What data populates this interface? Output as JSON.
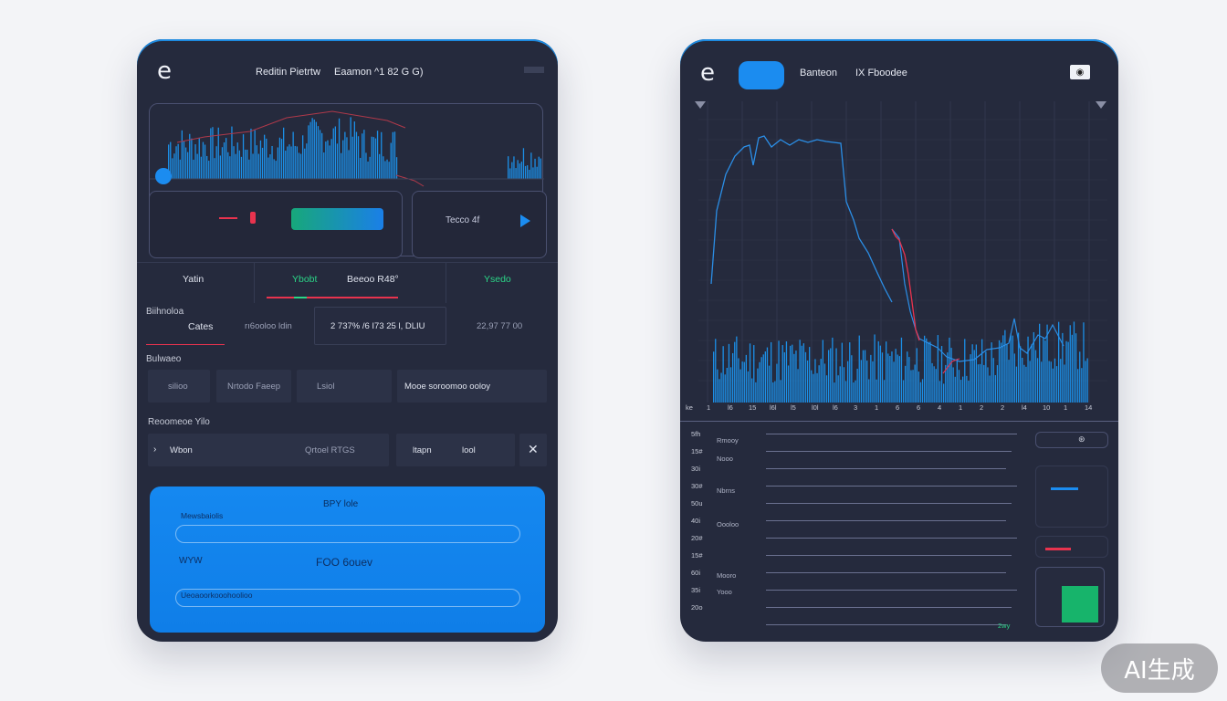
{
  "left": {
    "logo": "e",
    "header_title": "Reditin Pietrtw",
    "header_meta": "Eaamon ^1 82 G G)",
    "header_tag": "",
    "chart_card": {
      "pill_label": "",
      "side_label": "Tecco 4f"
    },
    "tabs": {
      "t1": "Yatin",
      "t2": "Ybobt",
      "t3": "Beeoo R48°",
      "t4": "Ysedo"
    },
    "balance": {
      "title": "Biihnoloa",
      "row_label": "Cates",
      "col1": "rı6ooloo ldin",
      "col2": "2 737% /6 I73 25 l, DLIU",
      "col3": "22,97 77 00"
    },
    "section2": {
      "title": "Bulwaeo",
      "c1": "silioo",
      "c2": "Nrtodo Faeep",
      "c3": "Lsiol",
      "c4": "Mooe soroomoo ooloy"
    },
    "section3": {
      "title": "Reoomeoe Yilo",
      "r1": "Wbon",
      "r2": "Qrtoel RTGS",
      "r3": "ltapn",
      "r4": "lool"
    },
    "panel": {
      "title": "BPY lole",
      "input1_label": "Mewsbaiolis",
      "field_label": "WYW",
      "field_value": "FOO 6ouev",
      "input2_label": "Ueoaoorkooohoolioo"
    }
  },
  "right": {
    "logo": "e",
    "btn_label": "",
    "header_title": "Banteon",
    "header_meta": "IX Fboodee",
    "x_labels": [
      "ke",
      "1",
      "l6",
      "15",
      "l6l",
      "l5",
      "l0l",
      "l6",
      "3",
      "1",
      "6",
      "6",
      "4",
      "1",
      "2",
      "2",
      "l4",
      "10",
      "1",
      "14"
    ],
    "y_labels": [
      "5fh",
      "15#",
      "30i",
      "30#",
      "50u",
      "40i",
      "20#",
      "15#",
      "60i",
      "35i",
      "20o"
    ],
    "row_labels": [
      "Rmooy",
      "Nooo",
      "Nbrns",
      "Oooloo",
      "Mooro",
      "Yooo"
    ],
    "right_bottom_mark": "2wy"
  },
  "watermark": "AI生成",
  "colors": {
    "bg": "#252a3d",
    "accent_blue": "#1b8cf0",
    "accent_green": "#2bd587",
    "accent_red": "#e8334e",
    "bar_blue": "#1c8fe6"
  }
}
